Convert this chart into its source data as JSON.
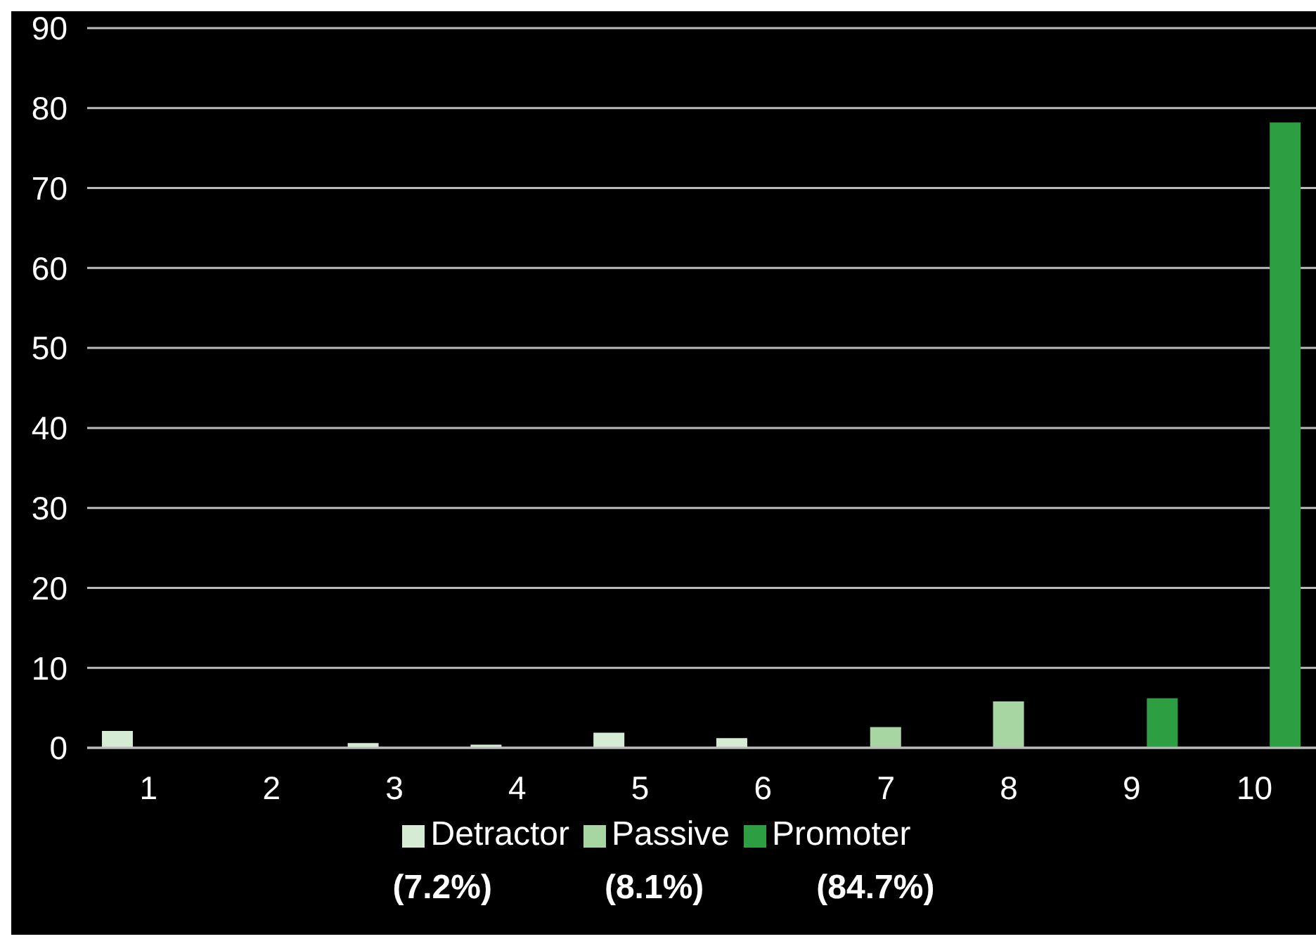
{
  "chart_data": {
    "type": "bar",
    "categories": [
      "1",
      "2",
      "3",
      "4",
      "5",
      "6",
      "7",
      "8",
      "9",
      "10"
    ],
    "series": [
      {
        "name": "Detractor",
        "color": "#d6ebd4",
        "values": [
          2.1,
          null,
          0.6,
          0.4,
          1.9,
          1.2,
          null,
          null,
          null,
          null
        ]
      },
      {
        "name": "Passive",
        "color": "#a8d6a3",
        "values": [
          null,
          null,
          null,
          null,
          null,
          null,
          2.6,
          5.8,
          null,
          null
        ]
      },
      {
        "name": "Promoter",
        "color": "#2e9e42",
        "values": [
          null,
          null,
          null,
          null,
          null,
          null,
          null,
          null,
          6.2,
          78.2
        ]
      }
    ],
    "ylim": [
      0,
      90
    ],
    "yticks": [
      0,
      10,
      20,
      30,
      40,
      50,
      60,
      70,
      80,
      90
    ],
    "grid": "y",
    "legend": "bottom",
    "annotations": [
      "(7.2%)",
      "(8.1%)",
      "(84.7%)"
    ]
  }
}
